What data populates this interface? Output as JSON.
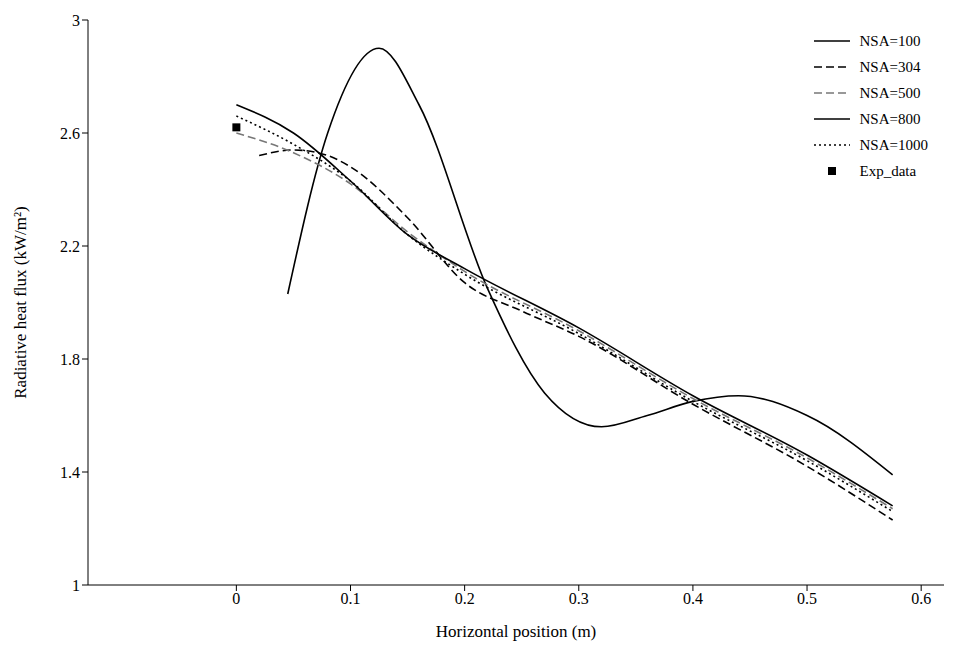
{
  "chart_data": {
    "type": "line",
    "xlabel": "Horizontal position (m)",
    "ylabel": "Radiative heat flux (kW/m²)",
    "xlim": [
      -0.13,
      0.62
    ],
    "xticks": [
      0,
      0.1,
      0.2,
      0.3,
      0.4,
      0.5,
      0.6
    ],
    "ylim": [
      1,
      3
    ],
    "yticks": [
      1,
      1.4,
      1.8,
      2.2,
      2.6,
      3
    ],
    "grid": false,
    "legend": "upper right",
    "series": [
      {
        "name": "NSA=100",
        "color": "#000000",
        "line_style": "solid",
        "x": [
          0.045,
          0.08,
          0.125,
          0.16,
          0.22,
          0.27,
          0.32,
          0.36,
          0.4,
          0.44,
          0.5,
          0.575
        ],
        "values": [
          2.03,
          2.6,
          2.9,
          2.7,
          2.05,
          1.68,
          1.56,
          1.6,
          1.65,
          1.67,
          1.6,
          1.39
        ]
      },
      {
        "name": "NSA=304",
        "color": "#000000",
        "line_style": "dashed",
        "x": [
          0.02,
          0.05,
          0.08,
          0.1,
          0.15,
          0.2,
          0.25,
          0.3,
          0.4,
          0.5,
          0.575
        ],
        "values": [
          2.52,
          2.54,
          2.52,
          2.48,
          2.3,
          2.07,
          1.97,
          1.88,
          1.64,
          1.42,
          1.23
        ]
      },
      {
        "name": "NSA=500",
        "color": "#777777",
        "line_style": "dashed",
        "x": [
          0,
          0.05,
          0.1,
          0.15,
          0.2,
          0.3,
          0.4,
          0.5,
          0.575
        ],
        "values": [
          2.6,
          2.53,
          2.42,
          2.25,
          2.11,
          1.9,
          1.66,
          1.45,
          1.27
        ]
      },
      {
        "name": "NSA=800",
        "color": "#000000",
        "line_style": "solid",
        "x": [
          0,
          0.05,
          0.1,
          0.15,
          0.2,
          0.3,
          0.4,
          0.5,
          0.575
        ],
        "values": [
          2.7,
          2.6,
          2.43,
          2.24,
          2.12,
          1.91,
          1.67,
          1.46,
          1.28
        ]
      },
      {
        "name": "NSA=1000",
        "color": "#000000",
        "line_style": "dotted",
        "x": [
          0,
          0.05,
          0.1,
          0.15,
          0.2,
          0.3,
          0.4,
          0.5,
          0.575
        ],
        "values": [
          2.66,
          2.56,
          2.43,
          2.24,
          2.1,
          1.89,
          1.65,
          1.44,
          1.26
        ]
      },
      {
        "name": "Exp_data",
        "type": "scatter",
        "marker": "square",
        "color": "#000000",
        "x": [
          0
        ],
        "values": [
          2.62
        ]
      }
    ]
  }
}
